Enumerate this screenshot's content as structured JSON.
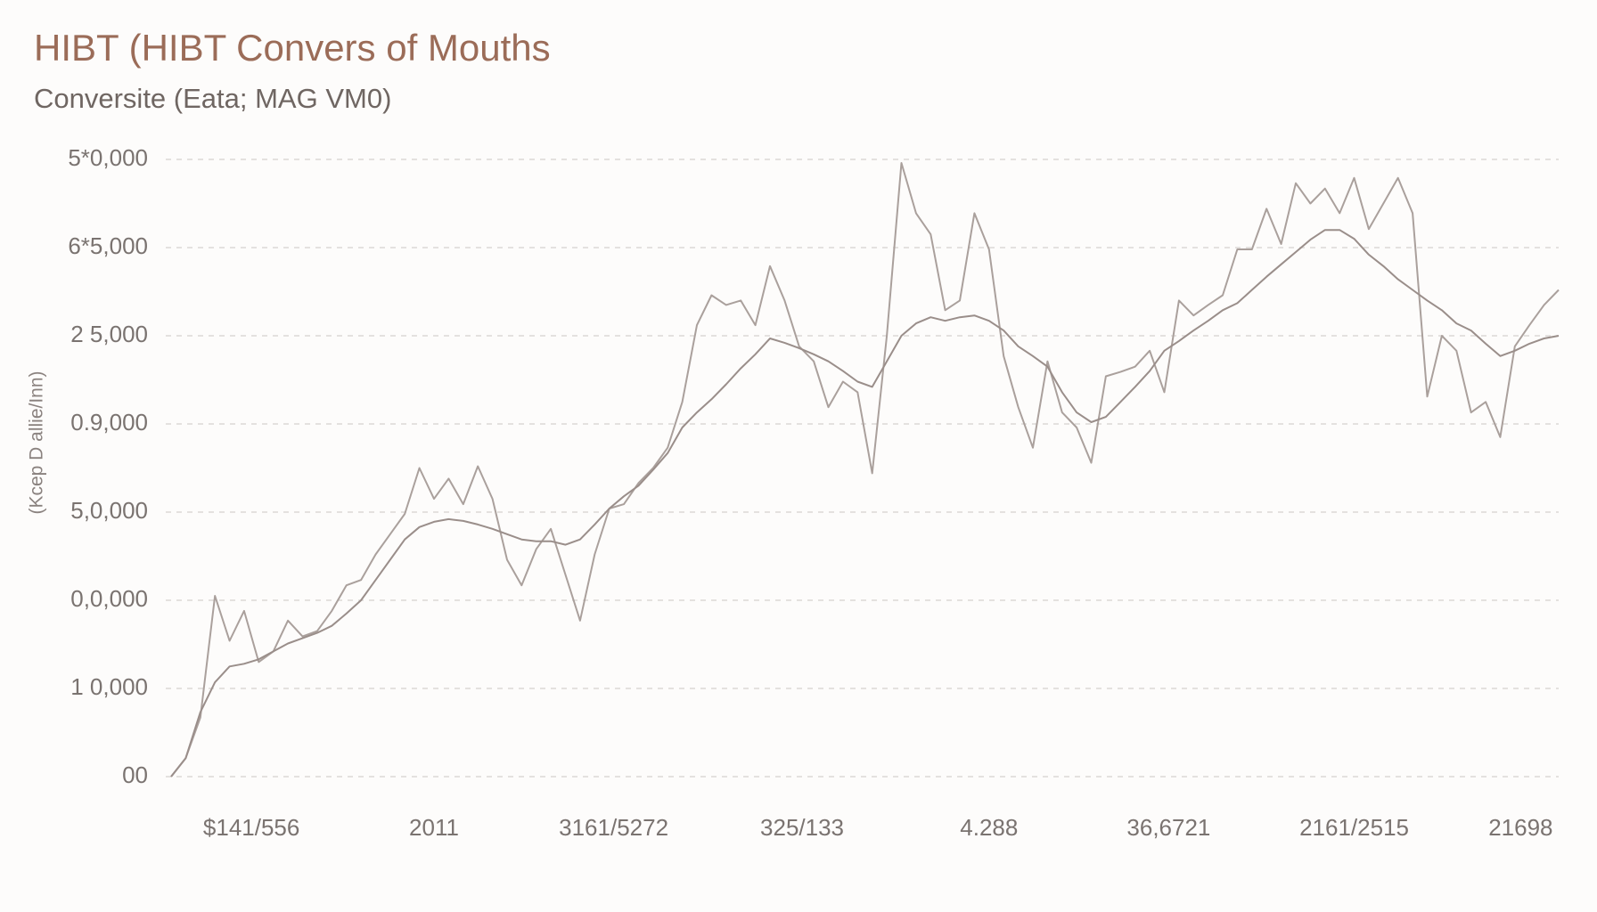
{
  "chart_data": {
    "type": "line",
    "title": "HIBT (HIBT Convers of Mouths",
    "subtitle": "Conversite (Eata; MAG VM0)",
    "y_label": "(Kcep D allie/Inn)",
    "grid": true,
    "xlim": [
      0,
      95
    ],
    "ylim": [
      0,
      70000
    ],
    "yticks": [
      {
        "value": 0,
        "label": "00"
      },
      {
        "value": 10000,
        "label": "1 0,000"
      },
      {
        "value": 20000,
        "label": "0,0,000"
      },
      {
        "value": 30000,
        "label": "5,0,000"
      },
      {
        "value": 40000,
        "label": "0.9,000"
      },
      {
        "value": 50000,
        "label": "2 5,000"
      },
      {
        "value": 60000,
        "label": "6*5,000"
      },
      {
        "value": 70000,
        "label": "5*0,000"
      }
    ],
    "xticks": [
      {
        "value": 5.5,
        "label": "$141/556"
      },
      {
        "value": 18,
        "label": "2011"
      },
      {
        "value": 30.3,
        "label": "3161/5272"
      },
      {
        "value": 43.2,
        "label": "325/133"
      },
      {
        "value": 56,
        "label": "4.288"
      },
      {
        "value": 68.3,
        "label": "36,6721"
      },
      {
        "value": 81,
        "label": "2161/2515"
      },
      {
        "value": 92.4,
        "label": "21698"
      }
    ],
    "series": [
      {
        "color": "#aaa09c",
        "values": [
          0,
          2100,
          6700,
          20500,
          15400,
          18800,
          13000,
          14200,
          17700,
          15900,
          16500,
          18800,
          21700,
          22300,
          25200,
          27500,
          29800,
          35000,
          31500,
          33800,
          30900,
          35200,
          31500,
          24600,
          21700,
          25800,
          28100,
          22900,
          17700,
          25200,
          30400,
          30900,
          33300,
          35000,
          37300,
          42500,
          51200,
          54600,
          53500,
          54000,
          51200,
          57900,
          54000,
          48800,
          47100,
          41900,
          44800,
          43600,
          34400,
          50000,
          69600,
          63900,
          61500,
          52900,
          54000,
          63900,
          59800,
          47700,
          41900,
          37300,
          47100,
          41300,
          39600,
          35600,
          45400,
          45900,
          46500,
          48300,
          43600,
          54000,
          52300,
          53500,
          54600,
          59800,
          59800,
          64400,
          60400,
          67300,
          65000,
          66700,
          63900,
          67900,
          62100,
          65000,
          67900,
          63900,
          43100,
          50000,
          48300,
          41300,
          42500,
          38500,
          48800,
          51200,
          53500,
          55200
        ]
      },
      {
        "color": "#9a8e8a",
        "values": [
          0,
          2100,
          7300,
          10700,
          12500,
          12800,
          13300,
          14200,
          15100,
          15700,
          16300,
          17100,
          18500,
          20000,
          22300,
          24600,
          26900,
          28300,
          28900,
          29200,
          29000,
          28600,
          28100,
          27500,
          26900,
          26700,
          26700,
          26300,
          26900,
          28600,
          30400,
          31800,
          33000,
          34800,
          36700,
          39600,
          41300,
          42800,
          44500,
          46300,
          47900,
          49700,
          49200,
          48600,
          47900,
          47100,
          46000,
          44800,
          44200,
          47100,
          50000,
          51400,
          52100,
          51700,
          52100,
          52300,
          51700,
          50600,
          48800,
          47700,
          46500,
          43600,
          41300,
          40200,
          40800,
          42500,
          44200,
          46000,
          48300,
          49400,
          50600,
          51700,
          52900,
          53700,
          55200,
          56700,
          58100,
          59500,
          60900,
          62000,
          62000,
          61000,
          59200,
          57900,
          56400,
          55200,
          54000,
          52900,
          51400,
          50600,
          49100,
          47700,
          48300,
          49100,
          49700,
          50000
        ]
      }
    ]
  }
}
